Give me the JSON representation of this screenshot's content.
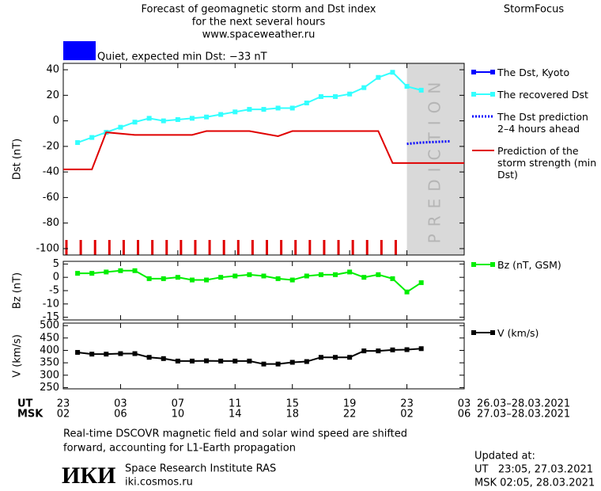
{
  "header": {
    "title_lines": [
      "Forecast of geomagnetic storm and Dst index",
      "for the next several hours",
      "www.spaceweather.ru"
    ],
    "brand": "StormFocus",
    "status": "Quiet, expected min Dst: −33 nT",
    "status_color": "#0000ff"
  },
  "chart_data": [
    {
      "type": "line",
      "ylabel": "Dst (nT)",
      "xlim": [
        0,
        28
      ],
      "ylim": [
        -105,
        45
      ],
      "yticks": [
        40,
        20,
        0,
        -20,
        -40,
        -60,
        -80,
        -100
      ],
      "prediction_region": {
        "label": "PREDICTION",
        "x": [
          24,
          28
        ],
        "color": "#d9d9d9"
      },
      "series": [
        {
          "name": "The Dst, Kyoto",
          "color": "#0000ff",
          "marker": "square",
          "x": [],
          "values": []
        },
        {
          "name": "The recovered Dst",
          "color": "#33ffff",
          "marker": "square",
          "x": [
            1,
            2,
            3,
            4,
            5,
            6,
            7,
            8,
            9,
            10,
            11,
            12,
            13,
            14,
            15,
            16,
            17,
            18,
            19,
            20,
            21,
            22,
            23,
            24,
            25
          ],
          "values": [
            -17,
            -13,
            -9,
            -5,
            -1,
            2,
            0,
            1,
            2,
            3,
            5,
            7,
            9,
            9,
            10,
            10,
            14,
            19,
            19,
            21,
            26,
            34,
            38,
            27,
            24
          ]
        },
        {
          "name": "The Dst prediction 2–4 hours ahead",
          "color": "#0000ff",
          "dash": "dotted",
          "x": [
            24,
            25,
            26,
            27
          ],
          "values": [
            -18,
            -17,
            -16.5,
            -16
          ]
        },
        {
          "name": "Prediction of the storm strength (min Dst)",
          "color": "#e00000",
          "x": [
            0,
            2,
            3,
            5,
            9,
            10,
            13,
            15,
            16,
            22,
            23,
            28
          ],
          "values": [
            -38,
            -38,
            -9,
            -11,
            -11,
            -8,
            -8,
            -12,
            -8,
            -8,
            -33,
            -33
          ]
        }
      ]
    },
    {
      "type": "line",
      "ylabel": "Bz (nT)",
      "xlim": [
        0,
        28
      ],
      "ylim": [
        -16,
        6
      ],
      "yticks": [
        5,
        0,
        -5,
        -10,
        -15
      ],
      "series": [
        {
          "name": "Bz (nT, GSM)",
          "color": "#00ee00",
          "marker": "square",
          "x": [
            1,
            2,
            3,
            4,
            5,
            6,
            7,
            8,
            9,
            10,
            11,
            12,
            13,
            14,
            15,
            16,
            17,
            18,
            19,
            20,
            21,
            22,
            23,
            24,
            25
          ],
          "values": [
            1.5,
            1.5,
            2,
            2.5,
            2.5,
            -0.5,
            -0.5,
            0,
            -1,
            -1,
            0,
            0.5,
            1,
            0.5,
            -0.5,
            -1,
            0.5,
            1,
            1,
            2,
            0,
            1,
            -0.5,
            -5.5,
            -2
          ]
        }
      ]
    },
    {
      "type": "line",
      "ylabel": "V (km/s)",
      "xlim": [
        0,
        28
      ],
      "ylim": [
        245,
        510
      ],
      "yticks": [
        500,
        450,
        400,
        350,
        300,
        250
      ],
      "series": [
        {
          "name": "V (km/s)",
          "color": "#000000",
          "marker": "square",
          "x": [
            1,
            2,
            3,
            4,
            5,
            6,
            7,
            8,
            9,
            10,
            11,
            12,
            13,
            14,
            15,
            16,
            17,
            18,
            19,
            20,
            21,
            22,
            23,
            24,
            25
          ],
          "values": [
            392,
            385,
            385,
            387,
            387,
            372,
            367,
            357,
            357,
            358,
            357,
            357,
            357,
            345,
            345,
            352,
            355,
            372,
            372,
            372,
            398,
            398,
            402,
            403,
            407
          ]
        }
      ]
    }
  ],
  "time_axis": {
    "ut_label": "UT",
    "ut_range": "26.03–28.03.2021",
    "ut_ticks": [
      {
        "value": 0,
        "label": "23"
      },
      {
        "value": 4,
        "label": "03"
      },
      {
        "value": 8,
        "label": "07"
      },
      {
        "value": 12,
        "label": "11"
      },
      {
        "value": 16,
        "label": "15"
      },
      {
        "value": 20,
        "label": "19"
      },
      {
        "value": 24,
        "label": "23"
      },
      {
        "value": 28,
        "label": "03"
      }
    ],
    "msk_label": "MSK",
    "msk_range": "27.03–28.03.2021",
    "msk_ticks": [
      {
        "value": 0,
        "label": "02"
      },
      {
        "value": 4,
        "label": "06"
      },
      {
        "value": 8,
        "label": "10"
      },
      {
        "value": 12,
        "label": "14"
      },
      {
        "value": 16,
        "label": "18"
      },
      {
        "value": 20,
        "label": "22"
      },
      {
        "value": 24,
        "label": "02"
      },
      {
        "value": 28,
        "label": "06"
      }
    ]
  },
  "footer": {
    "note_lines": [
      "Real-time DSCOVR magnetic field and solar wind speed are shifted",
      "forward, accounting for L1-Earth propagation"
    ],
    "logo": "ИКИ",
    "institute": "Space Research Institute RAS",
    "site": "iki.cosmos.ru",
    "updated_label": "Updated at:",
    "updated_ut": "UT   23:05, 27.03.2021",
    "updated_msk": "MSK 02:05, 28.03.2021"
  }
}
